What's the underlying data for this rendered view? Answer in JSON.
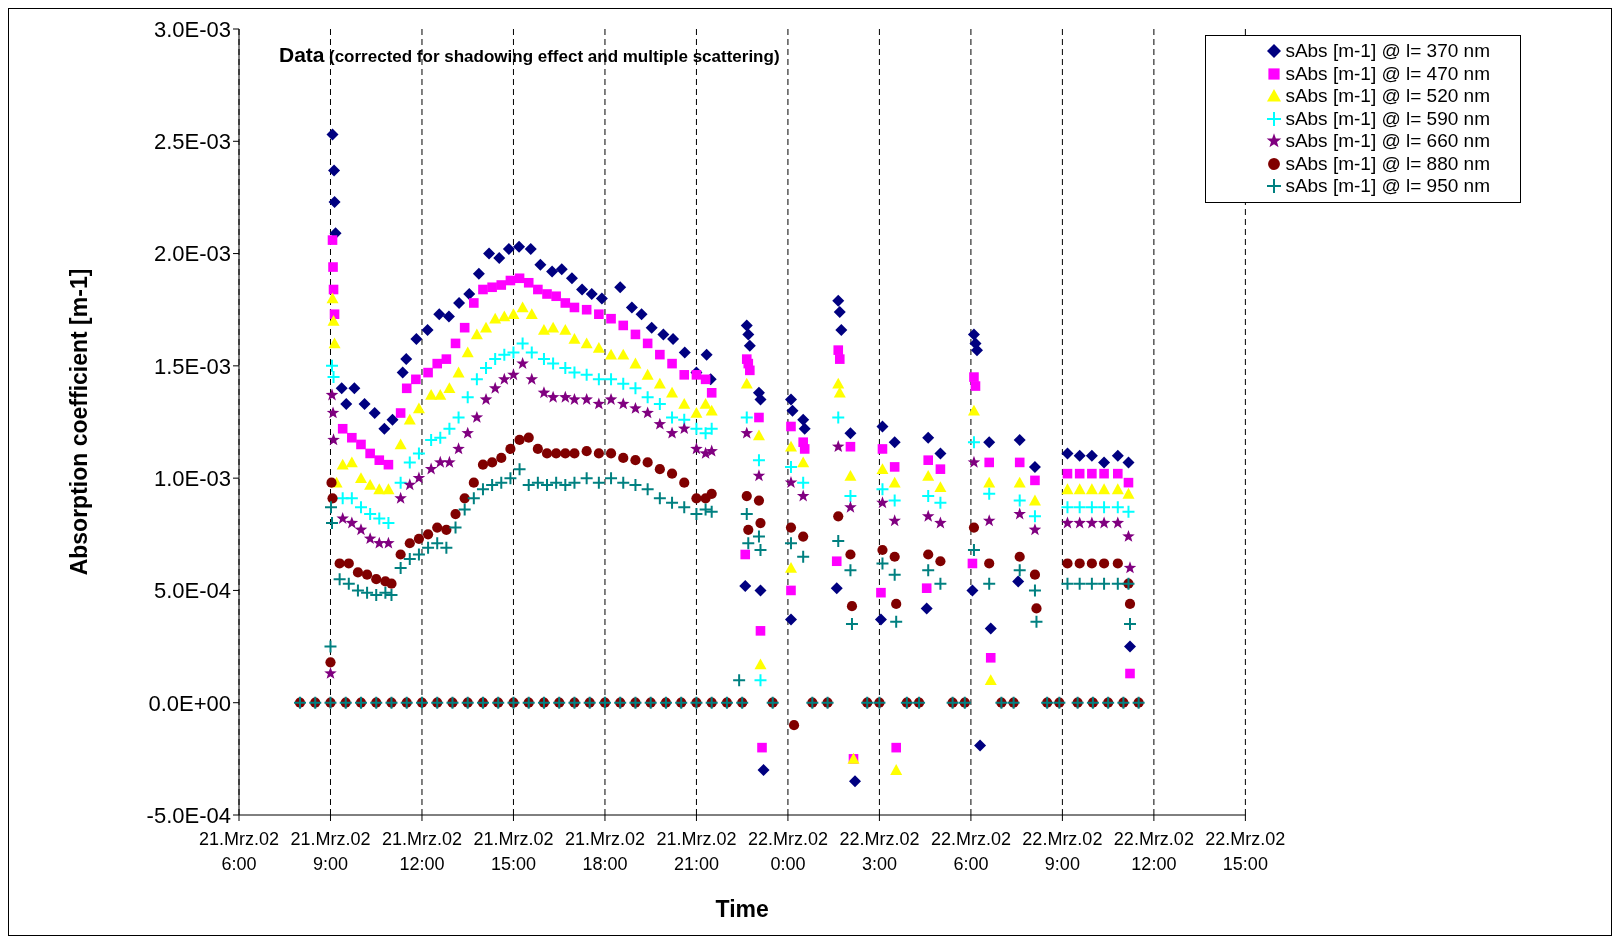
{
  "chart_data": {
    "type": "scatter",
    "title": "Data",
    "subtitle": "(corrected for shadowing effect and multiple scattering)",
    "xlabel": "Time",
    "ylabel": "Absorption coefficient [m-1]",
    "xlim": [
      "--03-21T06:00",
      "--03-22T15:00"
    ],
    "xticks": [
      {
        "value": "--03-21T06:00",
        "label": "21.Mrz.02 6:00"
      },
      {
        "value": "--03-21T09:00",
        "label": "21.Mrz.02 9:00"
      },
      {
        "value": "--03-21T12:00",
        "label": "21.Mrz.02 12:00"
      },
      {
        "value": "--03-21T15:00",
        "label": "21.Mrz.02 15:00"
      },
      {
        "value": "--03-21T18:00",
        "label": "21.Mrz.02 18:00"
      },
      {
        "value": "--03-21T21:00",
        "label": "21.Mrz.02 21:00"
      },
      {
        "value": "--03-22T00:00",
        "label": "22.Mrz.02 0:00"
      },
      {
        "value": "--03-22T03:00",
        "label": "22.Mrz.02 3:00"
      },
      {
        "value": "--03-22T06:00",
        "label": "22.Mrz.02 6:00"
      },
      {
        "value": "--03-22T09:00",
        "label": "22.Mrz.02 9:00"
      },
      {
        "value": "--03-22T12:00",
        "label": "22.Mrz.02 12:00"
      },
      {
        "value": "--03-22T15:00",
        "label": "22.Mrz.02 15:00"
      }
    ],
    "ylim": [
      -0.0005,
      0.003
    ],
    "yticks": [
      {
        "value": -0.0005,
        "label": "-5.0E-04"
      },
      {
        "value": 0,
        "label": "0.0E+00"
      },
      {
        "value": 0.0005,
        "label": "5.0E-04"
      },
      {
        "value": 0.001,
        "label": "1.0E-03"
      },
      {
        "value": 0.0015,
        "label": "1.5E-03"
      },
      {
        "value": 0.002,
        "label": "2.0E-03"
      },
      {
        "value": 0.0025,
        "label": "2.5E-03"
      },
      {
        "value": 0.003,
        "label": "3.0E-03"
      }
    ],
    "grid": "x",
    "legend": "top right",
    "series": [
      {
        "name": "sAbs [m-1] @ l= 370 nm",
        "color": "#000080",
        "marker": "diamond",
        "x": [
          "--03-21T09:04",
          "--03-21T09:07",
          "--03-21T09:08",
          "--03-21T09:10",
          "--03-21T09:22",
          "--03-21T09:31",
          "--03-21T09:47",
          "--03-21T10:07",
          "--03-21T10:27",
          "--03-21T10:46",
          "--03-21T11:02",
          "--03-21T11:22",
          "--03-21T11:29",
          "--03-21T11:49",
          "--03-21T12:11",
          "--03-21T12:34",
          "--03-21T12:53",
          "--03-21T13:13",
          "--03-21T13:33",
          "--03-21T13:52",
          "--03-21T14:12",
          "--03-21T14:32",
          "--03-21T14:51",
          "--03-21T15:11",
          "--03-21T15:34",
          "--03-21T15:53",
          "--03-21T16:16",
          "--03-21T16:35",
          "--03-21T16:55",
          "--03-21T17:15",
          "--03-21T17:34",
          "--03-21T17:54",
          "--03-21T18:30",
          "--03-21T18:53",
          "--03-21T19:12",
          "--03-21T19:32",
          "--03-21T19:55",
          "--03-21T20:14",
          "--03-21T20:37",
          "--03-21T21:00",
          "--03-21T21:20",
          "--03-21T21:28",
          "--03-21T22:36",
          "--03-21T22:39",
          "--03-21T22:42",
          "--03-21T22:45",
          "--03-21T23:03",
          "--03-21T23:06",
          "--03-21T23:06",
          "--03-21T23:12",
          "--03-22T00:06",
          "--03-22T00:09",
          "--03-22T00:06",
          "--03-22T00:30",
          "--03-22T00:33",
          "--03-22T01:36",
          "--03-22T01:39",
          "--03-22T01:42",
          "--03-22T01:45",
          "--03-22T02:03",
          "--03-22T02:12",
          "--03-22T03:03",
          "--03-22T03:06",
          "--03-22T03:30",
          "--03-22T04:33",
          "--03-22T04:36",
          "--03-22T05:00",
          "--03-22T06:03",
          "--03-22T06:06",
          "--03-22T06:09",
          "--03-22T06:12",
          "--03-22T06:18",
          "--03-22T06:36",
          "--03-22T06:39",
          "--03-22T07:33",
          "--03-22T07:36",
          "--03-22T08:06",
          "--03-22T09:10",
          "--03-22T09:34",
          "--03-22T09:58",
          "--03-22T10:22",
          "--03-22T10:49",
          "--03-22T11:10",
          "--03-22T11:13"
        ],
        "values": [
          0.00253,
          0.00237,
          0.00223,
          0.00209,
          0.0014,
          0.00133,
          0.0014,
          0.00133,
          0.00129,
          0.00122,
          0.00126,
          0.00147,
          0.00153,
          0.00162,
          0.00166,
          0.00173,
          0.00172,
          0.00178,
          0.00182,
          0.00191,
          0.002,
          0.00198,
          0.00202,
          0.00203,
          0.00202,
          0.00195,
          0.00192,
          0.00193,
          0.00189,
          0.00184,
          0.00182,
          0.0018,
          0.00185,
          0.00176,
          0.00173,
          0.00167,
          0.00164,
          0.00162,
          0.00156,
          0.00147,
          0.00155,
          0.00144,
          0.00052,
          0.00168,
          0.00164,
          0.00159,
          0.00138,
          0.00135,
          0.0005,
          -0.0003,
          0.00135,
          0.0013,
          0.00037,
          0.00126,
          0.00122,
          0.00051,
          0.00179,
          0.00174,
          0.00166,
          0.0012,
          -0.00035,
          0.00037,
          0.00123,
          0.00116,
          0.00042,
          0.00118,
          0.00111,
          0.0005,
          0.00164,
          0.0016,
          0.00157,
          -0.00019,
          0.00116,
          0.00033,
          0.00054,
          0.00117,
          0.00105,
          0.00111,
          0.0011,
          0.0011,
          0.00107,
          0.0011,
          0.00107,
          0.00025
        ]
      },
      {
        "name": "sAbs [m-1] @ l= 470 nm",
        "color": "#ff00ff",
        "marker": "square",
        "x": [
          "--03-21T09:04",
          "--03-21T09:05",
          "--03-21T09:06",
          "--03-21T09:08",
          "--03-21T09:24",
          "--03-21T09:42",
          "--03-21T10:00",
          "--03-21T10:18",
          "--03-21T10:36",
          "--03-21T10:54",
          "--03-21T11:18",
          "--03-21T11:30",
          "--03-21T11:48",
          "--03-21T12:12",
          "--03-21T12:30",
          "--03-21T12:48",
          "--03-21T13:06",
          "--03-21T13:24",
          "--03-21T13:42",
          "--03-21T14:00",
          "--03-21T14:18",
          "--03-21T14:36",
          "--03-21T14:54",
          "--03-21T15:12",
          "--03-21T15:30",
          "--03-21T15:48",
          "--03-21T16:06",
          "--03-21T16:24",
          "--03-21T16:42",
          "--03-21T17:00",
          "--03-21T17:24",
          "--03-21T17:48",
          "--03-21T18:12",
          "--03-21T18:36",
          "--03-21T19:00",
          "--03-21T19:24",
          "--03-21T19:48",
          "--03-21T20:12",
          "--03-21T20:36",
          "--03-21T21:00",
          "--03-21T21:18",
          "--03-21T21:30",
          "--03-21T22:36",
          "--03-21T22:39",
          "--03-21T22:42",
          "--03-21T22:45",
          "--03-21T23:03",
          "--03-21T23:06",
          "--03-21T23:09",
          "--03-22T00:06",
          "--03-22T00:06",
          "--03-22T00:30",
          "--03-22T00:33",
          "--03-22T01:36",
          "--03-22T01:39",
          "--03-22T01:42",
          "--03-22T02:03",
          "--03-22T02:09",
          "--03-22T03:06",
          "--03-22T03:03",
          "--03-22T03:30",
          "--03-22T03:33",
          "--03-22T04:36",
          "--03-22T04:33",
          "--03-22T05:00",
          "--03-22T06:06",
          "--03-22T06:09",
          "--03-22T06:03",
          "--03-22T06:36",
          "--03-22T06:39",
          "--03-22T07:36",
          "--03-22T08:06",
          "--03-22T09:10",
          "--03-22T09:34",
          "--03-22T09:58",
          "--03-22T10:22",
          "--03-22T10:49",
          "--03-22T11:10",
          "--03-22T11:13"
        ],
        "values": [
          0.00206,
          0.00194,
          0.00184,
          0.00173,
          0.00122,
          0.00118,
          0.00115,
          0.00111,
          0.00108,
          0.00106,
          0.00129,
          0.0014,
          0.00144,
          0.00147,
          0.00151,
          0.00153,
          0.0016,
          0.00167,
          0.00178,
          0.00184,
          0.00185,
          0.00186,
          0.00188,
          0.00189,
          0.00187,
          0.00184,
          0.00182,
          0.00181,
          0.00178,
          0.00176,
          0.00175,
          0.00173,
          0.00171,
          0.00168,
          0.00164,
          0.0016,
          0.00155,
          0.00151,
          0.00146,
          0.00146,
          0.00144,
          0.00138,
          0.00066,
          0.00153,
          0.00151,
          0.00148,
          0.00127,
          0.00032,
          -0.0002,
          0.00123,
          0.0005,
          0.00116,
          0.00113,
          0.00063,
          0.00157,
          0.00153,
          0.00114,
          -0.00025,
          0.00113,
          0.00049,
          0.00105,
          -0.0002,
          0.00108,
          0.00051,
          0.00104,
          0.00145,
          0.00141,
          0.00062,
          0.00107,
          0.0002,
          0.00107,
          0.00099,
          0.00102,
          0.00102,
          0.00102,
          0.00102,
          0.00102,
          0.00098,
          0.00013
        ]
      },
      {
        "name": "sAbs [m-1] @ l= 520 nm",
        "color": "#ffff00",
        "marker": "triangle",
        "x": [
          "--03-21T09:04",
          "--03-21T09:06",
          "--03-21T09:08",
          "--03-21T09:12",
          "--03-21T09:24",
          "--03-21T09:42",
          "--03-21T10:00",
          "--03-21T10:18",
          "--03-21T10:36",
          "--03-21T10:54",
          "--03-21T11:18",
          "--03-21T11:36",
          "--03-21T11:54",
          "--03-21T12:18",
          "--03-21T12:36",
          "--03-21T12:54",
          "--03-21T13:12",
          "--03-21T13:30",
          "--03-21T13:48",
          "--03-21T14:06",
          "--03-21T14:24",
          "--03-21T14:42",
          "--03-21T15:00",
          "--03-21T15:18",
          "--03-21T15:36",
          "--03-21T16:00",
          "--03-21T16:18",
          "--03-21T16:42",
          "--03-21T17:00",
          "--03-21T17:24",
          "--03-21T17:48",
          "--03-21T18:12",
          "--03-21T18:36",
          "--03-21T19:00",
          "--03-21T19:24",
          "--03-21T19:48",
          "--03-21T20:12",
          "--03-21T20:36",
          "--03-21T21:00",
          "--03-21T21:18",
          "--03-21T21:30",
          "--03-21T22:39",
          "--03-21T23:03",
          "--03-21T23:06",
          "--03-22T00:06",
          "--03-22T00:06",
          "--03-22T00:30",
          "--03-22T01:39",
          "--03-22T01:42",
          "--03-22T02:03",
          "--03-22T02:09",
          "--03-22T03:06",
          "--03-22T03:30",
          "--03-22T03:33",
          "--03-22T04:36",
          "--03-22T05:00",
          "--03-22T06:06",
          "--03-22T06:36",
          "--03-22T06:39",
          "--03-22T07:36",
          "--03-22T08:06",
          "--03-22T09:10",
          "--03-22T09:34",
          "--03-22T09:58",
          "--03-22T10:22",
          "--03-22T10:49",
          "--03-22T11:10"
        ],
        "values": [
          0.0018,
          0.0017,
          0.0016,
          0.00098,
          0.00106,
          0.00107,
          0.001,
          0.00097,
          0.00095,
          0.00095,
          0.00115,
          0.00126,
          0.00131,
          0.00137,
          0.00137,
          0.0014,
          0.00147,
          0.00156,
          0.00164,
          0.00167,
          0.00171,
          0.00172,
          0.00173,
          0.00176,
          0.00173,
          0.00166,
          0.00167,
          0.00166,
          0.00162,
          0.0016,
          0.00158,
          0.00155,
          0.00155,
          0.00151,
          0.00146,
          0.00142,
          0.00138,
          0.00133,
          0.00129,
          0.00133,
          0.0013,
          0.00142,
          0.00119,
          0.00017,
          0.00114,
          0.0006,
          0.00107,
          0.00142,
          0.00138,
          0.00101,
          -0.00025,
          0.00104,
          0.00098,
          -0.0003,
          0.00101,
          0.00096,
          0.0013,
          0.00098,
          0.0001,
          0.00098,
          0.0009,
          0.00095,
          0.00095,
          0.00095,
          0.00095,
          0.00095,
          0.00093
        ]
      },
      {
        "name": "sAbs [m-1] @ l= 590 nm",
        "color": "#00ffff",
        "marker": "cross",
        "x": [
          "--03-21T09:03",
          "--03-21T09:06",
          "--03-21T09:24",
          "--03-21T09:42",
          "--03-21T10:00",
          "--03-21T10:18",
          "--03-21T10:36",
          "--03-21T10:54",
          "--03-21T11:18",
          "--03-21T11:36",
          "--03-21T11:54",
          "--03-21T12:18",
          "--03-21T12:36",
          "--03-21T12:54",
          "--03-21T13:12",
          "--03-21T13:30",
          "--03-21T13:48",
          "--03-21T14:06",
          "--03-21T14:24",
          "--03-21T14:42",
          "--03-21T15:00",
          "--03-21T15:18",
          "--03-21T15:36",
          "--03-21T16:00",
          "--03-21T16:18",
          "--03-21T16:42",
          "--03-21T17:00",
          "--03-21T17:24",
          "--03-21T17:48",
          "--03-21T18:12",
          "--03-21T18:36",
          "--03-21T19:00",
          "--03-21T19:24",
          "--03-21T19:48",
          "--03-21T20:12",
          "--03-21T20:36",
          "--03-21T21:00",
          "--03-21T21:18",
          "--03-21T21:30",
          "--03-21T22:39",
          "--03-21T23:03",
          "--03-21T23:06",
          "--03-22T00:06",
          "--03-22T00:30",
          "--03-22T01:39",
          "--03-22T02:03",
          "--03-22T03:06",
          "--03-22T03:30",
          "--03-22T04:36",
          "--03-22T05:00",
          "--03-22T06:06",
          "--03-22T06:36",
          "--03-22T07:36",
          "--03-22T08:06",
          "--03-22T09:10",
          "--03-22T09:34",
          "--03-22T09:58",
          "--03-22T10:22",
          "--03-22T10:49",
          "--03-22T11:10"
        ],
        "values": [
          0.0015,
          0.00145,
          0.00091,
          0.00091,
          0.00087,
          0.00084,
          0.00082,
          0.0008,
          0.00098,
          0.00107,
          0.00111,
          0.00117,
          0.00118,
          0.00122,
          0.00127,
          0.00136,
          0.00144,
          0.00149,
          0.00153,
          0.00155,
          0.00156,
          0.0016,
          0.00156,
          0.00153,
          0.00151,
          0.00149,
          0.00147,
          0.00146,
          0.00144,
          0.00144,
          0.00142,
          0.0014,
          0.00136,
          0.00133,
          0.00127,
          0.00126,
          0.00122,
          0.0012,
          0.00122,
          0.00127,
          0.00108,
          0.0001,
          0.00105,
          0.00098,
          0.00127,
          0.00092,
          0.00095,
          0.0009,
          0.00092,
          0.00089,
          0.00116,
          0.00093,
          0.0009,
          0.00083,
          0.00087,
          0.00087,
          0.00087,
          0.00087,
          0.00087,
          0.00085
        ]
      },
      {
        "name": "sAbs [m-1] @ l= 660 nm",
        "color": "#800080",
        "marker": "star",
        "x": [
          "--03-21T09:00",
          "--03-21T09:03",
          "--03-21T09:05",
          "--03-21T09:06",
          "--03-21T09:24",
          "--03-21T09:42",
          "--03-21T10:00",
          "--03-21T10:18",
          "--03-21T10:36",
          "--03-21T10:54",
          "--03-21T11:18",
          "--03-21T11:36",
          "--03-21T11:54",
          "--03-21T12:18",
          "--03-21T12:36",
          "--03-21T12:54",
          "--03-21T13:12",
          "--03-21T13:30",
          "--03-21T13:48",
          "--03-21T14:06",
          "--03-21T14:24",
          "--03-21T14:42",
          "--03-21T15:00",
          "--03-21T15:18",
          "--03-21T15:36",
          "--03-21T16:00",
          "--03-21T16:18",
          "--03-21T16:42",
          "--03-21T17:00",
          "--03-21T17:24",
          "--03-21T17:48",
          "--03-21T18:12",
          "--03-21T18:36",
          "--03-21T19:00",
          "--03-21T19:24",
          "--03-21T19:48",
          "--03-21T20:12",
          "--03-21T20:36",
          "--03-21T21:00",
          "--03-21T21:18",
          "--03-21T21:30",
          "--03-21T22:39",
          "--03-21T23:03",
          "--03-22T00:06",
          "--03-22T00:30",
          "--03-22T01:39",
          "--03-22T02:03",
          "--03-22T03:06",
          "--03-22T03:30",
          "--03-22T04:36",
          "--03-22T05:00",
          "--03-22T06:06",
          "--03-22T06:36",
          "--03-22T07:36",
          "--03-22T08:06",
          "--03-22T09:10",
          "--03-22T09:34",
          "--03-22T09:58",
          "--03-22T10:22",
          "--03-22T10:49",
          "--03-22T11:10",
          "--03-22T11:13"
        ],
        "values": [
          0.00013,
          0.00137,
          0.00129,
          0.00117,
          0.00082,
          0.0008,
          0.00077,
          0.00073,
          0.00071,
          0.00071,
          0.00091,
          0.00097,
          0.001,
          0.00104,
          0.00107,
          0.00107,
          0.00113,
          0.0012,
          0.00127,
          0.00135,
          0.0014,
          0.00144,
          0.00146,
          0.00151,
          0.00144,
          0.00138,
          0.00136,
          0.00136,
          0.00135,
          0.00135,
          0.00133,
          0.00135,
          0.00133,
          0.00131,
          0.00129,
          0.00124,
          0.0012,
          0.00122,
          0.00113,
          0.00111,
          0.00112,
          0.0012,
          0.00101,
          0.00098,
          0.00092,
          0.00114,
          0.00087,
          0.00089,
          0.00081,
          0.00083,
          0.0008,
          0.00107,
          0.00081,
          0.00084,
          0.00077,
          0.0008,
          0.0008,
          0.0008,
          0.0008,
          0.0008,
          0.00074,
          0.0006
        ]
      },
      {
        "name": "sAbs [m-1] @ l= 880 nm",
        "color": "#800000",
        "marker": "circle",
        "x": [
          "--03-21T08:00",
          "--03-21T08:30",
          "--03-21T09:00",
          "--03-21T09:30",
          "--03-21T10:00",
          "--03-21T10:30",
          "--03-21T11:00",
          "--03-21T11:30",
          "--03-21T12:00",
          "--03-21T12:30",
          "--03-21T13:00",
          "--03-21T13:30",
          "--03-21T14:00",
          "--03-21T14:30",
          "--03-21T15:00",
          "--03-21T15:30",
          "--03-21T16:00",
          "--03-21T16:30",
          "--03-21T17:00",
          "--03-21T17:30",
          "--03-21T18:00",
          "--03-21T18:30",
          "--03-21T19:00",
          "--03-21T19:30",
          "--03-21T20:00",
          "--03-21T20:30",
          "--03-21T21:00",
          "--03-21T21:30",
          "--03-21T22:00",
          "--03-21T22:30",
          "--03-21T23:30",
          "--03-22T00:48",
          "--03-22T01:18",
          "--03-22T02:36",
          "--03-22T03:00",
          "--03-22T03:54",
          "--03-22T04:18",
          "--03-22T05:24",
          "--03-22T05:48",
          "--03-22T07:00",
          "--03-22T07:24",
          "--03-22T08:30",
          "--03-22T08:54",
          "--03-22T09:30",
          "--03-22T10:00",
          "--03-22T10:30",
          "--03-22T11:00",
          "--03-22T11:30",
          "--03-21T09:00",
          "--03-21T09:02",
          "--03-21T09:04",
          "--03-21T09:18",
          "--03-21T09:36",
          "--03-21T09:54",
          "--03-21T10:12",
          "--03-21T10:30",
          "--03-21T10:48",
          "--03-21T11:00",
          "--03-21T11:18",
          "--03-21T11:36",
          "--03-21T11:54",
          "--03-21T12:12",
          "--03-21T12:30",
          "--03-21T12:48",
          "--03-21T13:06",
          "--03-21T13:24",
          "--03-21T13:42",
          "--03-21T14:00",
          "--03-21T14:18",
          "--03-21T14:36",
          "--03-21T14:54",
          "--03-21T15:12",
          "--03-21T15:30",
          "--03-21T15:48",
          "--03-21T16:06",
          "--03-21T16:24",
          "--03-21T16:42",
          "--03-21T17:00",
          "--03-21T17:24",
          "--03-21T17:48",
          "--03-21T18:12",
          "--03-21T18:36",
          "--03-21T19:00",
          "--03-21T19:24",
          "--03-21T19:48",
          "--03-21T20:12",
          "--03-21T20:36",
          "--03-21T21:00",
          "--03-21T21:18",
          "--03-21T21:30",
          "--03-21T22:39",
          "--03-21T22:42",
          "--03-21T23:03",
          "--03-21T23:06",
          "--03-22T00:06",
          "--03-22T00:30",
          "--03-22T00:12",
          "--03-22T01:39",
          "--03-22T02:03",
          "--03-22T02:06",
          "--03-22T03:06",
          "--03-22T03:30",
          "--03-22T03:33",
          "--03-22T04:36",
          "--03-22T05:00",
          "--03-22T06:06",
          "--03-22T06:36",
          "--03-22T07:36",
          "--03-22T08:06",
          "--03-22T08:09",
          "--03-22T09:10",
          "--03-22T09:34",
          "--03-22T09:58",
          "--03-22T10:22",
          "--03-22T10:49",
          "--03-22T11:10",
          "--03-22T11:13"
        ],
        "values": [
          0,
          0,
          0,
          0,
          0,
          0,
          0,
          0,
          0,
          0,
          0,
          0,
          0,
          0,
          0,
          0,
          0,
          0,
          0,
          0,
          0,
          0,
          0,
          0,
          0,
          0,
          0,
          0,
          0,
          0,
          0,
          0,
          0,
          0,
          0,
          0,
          0,
          0,
          0,
          0,
          0,
          0,
          0,
          0,
          0,
          0,
          0,
          0,
          0.00018,
          0.00098,
          0.00091,
          0.00062,
          0.00062,
          0.00058,
          0.00057,
          0.00055,
          0.00054,
          0.00053,
          0.00066,
          0.00071,
          0.00073,
          0.00075,
          0.00078,
          0.00077,
          0.00084,
          0.00091,
          0.00098,
          0.00106,
          0.00107,
          0.00109,
          0.00113,
          0.00117,
          0.00118,
          0.00113,
          0.00111,
          0.00111,
          0.00111,
          0.00111,
          0.00112,
          0.00111,
          0.00111,
          0.00109,
          0.00108,
          0.00107,
          0.00104,
          0.00102,
          0.00098,
          0.00091,
          0.00091,
          0.00093,
          0.00092,
          0.00077,
          0.0009,
          0.0008,
          0.00078,
          0.00074,
          -0.0001,
          0.00083,
          0.00066,
          0.00043,
          0.00068,
          0.00065,
          0.00044,
          0.00066,
          0.00063,
          0.00078,
          0.00062,
          0.00065,
          0.00057,
          0.00042,
          0.00062,
          0.00062,
          0.00062,
          0.00062,
          0.00062,
          0.00053,
          0.00044
        ]
      },
      {
        "name": "sAbs [m-1] @ l= 950 nm",
        "color": "#008080",
        "marker": "cross",
        "x": [
          "--03-21T08:00",
          "--03-21T08:30",
          "--03-21T09:00",
          "--03-21T09:30",
          "--03-21T10:00",
          "--03-21T10:30",
          "--03-21T11:00",
          "--03-21T11:30",
          "--03-21T12:00",
          "--03-21T12:30",
          "--03-21T13:00",
          "--03-21T13:30",
          "--03-21T14:00",
          "--03-21T14:30",
          "--03-21T15:00",
          "--03-21T15:30",
          "--03-21T16:00",
          "--03-21T16:30",
          "--03-21T17:00",
          "--03-21T17:30",
          "--03-21T18:00",
          "--03-21T18:30",
          "--03-21T19:00",
          "--03-21T19:30",
          "--03-21T20:00",
          "--03-21T20:30",
          "--03-21T21:00",
          "--03-21T21:30",
          "--03-21T22:00",
          "--03-21T22:30",
          "--03-21T23:30",
          "--03-22T00:48",
          "--03-22T01:18",
          "--03-22T02:36",
          "--03-22T03:00",
          "--03-22T03:54",
          "--03-22T04:18",
          "--03-22T05:24",
          "--03-22T05:48",
          "--03-22T07:00",
          "--03-22T07:24",
          "--03-22T08:30",
          "--03-22T08:54",
          "--03-22T09:30",
          "--03-22T10:00",
          "--03-22T10:30",
          "--03-22T11:00",
          "--03-22T11:30",
          "--03-21T09:00",
          "--03-21T09:01",
          "--03-21T09:03",
          "--03-21T09:18",
          "--03-21T09:36",
          "--03-21T09:54",
          "--03-21T10:12",
          "--03-21T10:30",
          "--03-21T10:48",
          "--03-21T11:00",
          "--03-21T11:18",
          "--03-21T11:36",
          "--03-21T11:54",
          "--03-21T12:12",
          "--03-21T12:30",
          "--03-21T12:48",
          "--03-21T13:06",
          "--03-21T13:24",
          "--03-21T13:42",
          "--03-21T14:00",
          "--03-21T14:18",
          "--03-21T14:36",
          "--03-21T14:54",
          "--03-21T15:12",
          "--03-21T15:30",
          "--03-21T15:48",
          "--03-21T16:06",
          "--03-21T16:24",
          "--03-21T16:42",
          "--03-21T17:00",
          "--03-21T17:24",
          "--03-21T17:48",
          "--03-21T18:12",
          "--03-21T18:36",
          "--03-21T19:00",
          "--03-21T19:24",
          "--03-21T19:48",
          "--03-21T20:12",
          "--03-21T20:36",
          "--03-21T21:00",
          "--03-21T21:18",
          "--03-21T21:30",
          "--03-21T22:24",
          "--03-21T22:39",
          "--03-21T22:42",
          "--03-21T23:03",
          "--03-21T23:06",
          "--03-22T00:06",
          "--03-22T00:30",
          "--03-22T01:39",
          "--03-22T02:03",
          "--03-22T02:06",
          "--03-22T03:06",
          "--03-22T03:30",
          "--03-22T03:33",
          "--03-22T04:36",
          "--03-22T05:00",
          "--03-22T06:06",
          "--03-22T06:36",
          "--03-22T07:36",
          "--03-22T08:06",
          "--03-22T08:09",
          "--03-22T09:10",
          "--03-22T09:34",
          "--03-22T09:58",
          "--03-22T10:22",
          "--03-22T10:49",
          "--03-22T11:10",
          "--03-22T11:13"
        ],
        "values": [
          0,
          0,
          0,
          0,
          0,
          0,
          0,
          0,
          0,
          0,
          0,
          0,
          0,
          0,
          0,
          0,
          0,
          0,
          0,
          0,
          0,
          0,
          0,
          0,
          0,
          0,
          0,
          0,
          0,
          0,
          0,
          0,
          0,
          0,
          0,
          0,
          0,
          0,
          0,
          0,
          0,
          0,
          0,
          0,
          0,
          0,
          0,
          0,
          0.00025,
          0.00087,
          0.0008,
          0.00055,
          0.00053,
          0.0005,
          0.00049,
          0.00048,
          0.00049,
          0.00048,
          0.0006,
          0.00064,
          0.00066,
          0.00069,
          0.00071,
          0.00069,
          0.00078,
          0.00086,
          0.00091,
          0.00095,
          0.00097,
          0.00098,
          0.001,
          0.00104,
          0.00097,
          0.00098,
          0.00097,
          0.00098,
          0.00097,
          0.00098,
          0.001,
          0.00098,
          0.001,
          0.00098,
          0.00097,
          0.00095,
          0.00091,
          0.00089,
          0.00087,
          0.00084,
          0.00086,
          0.00085,
          0.0001,
          0.00084,
          0.00071,
          0.00074,
          0.00068,
          0.00071,
          0.00065,
          0.00072,
          0.00059,
          0.00035,
          0.00062,
          0.00057,
          0.00036,
          0.00059,
          0.00053,
          0.00068,
          0.00053,
          0.00059,
          0.0005,
          0.00036,
          0.00053,
          0.00053,
          0.00053,
          0.00053,
          0.00053,
          0.00053,
          0.00035
        ]
      }
    ]
  }
}
